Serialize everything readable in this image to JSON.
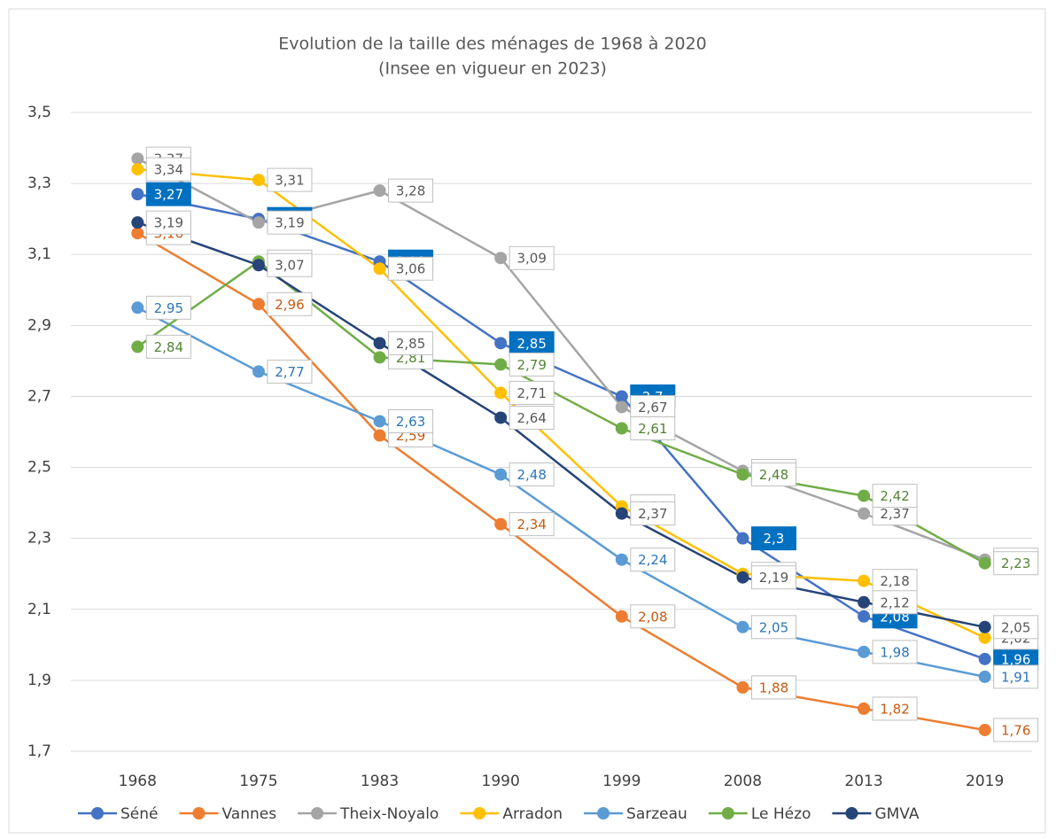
{
  "chart_data": {
    "type": "line",
    "title": "Evolution de la taille des ménages de 1968 à 2020",
    "subtitle": "(Insee en vigueur en 2023)",
    "categories": [
      "1968",
      "1975",
      "1983",
      "1990",
      "1999",
      "2008",
      "2013",
      "2019"
    ],
    "ylim": [
      1.7,
      3.5
    ],
    "yticks": [
      {
        "value": 1.7,
        "label": "1,7"
      },
      {
        "value": 1.9,
        "label": "1,9"
      },
      {
        "value": 2.1,
        "label": "2,1"
      },
      {
        "value": 2.3,
        "label": "2,3"
      },
      {
        "value": 2.5,
        "label": "2,5"
      },
      {
        "value": 2.7,
        "label": "2,7"
      },
      {
        "value": 2.9,
        "label": "2,9"
      },
      {
        "value": 3.1,
        "label": "3,1"
      },
      {
        "value": 3.3,
        "label": "3,3"
      },
      {
        "value": 3.5,
        "label": "3,5"
      }
    ],
    "grid": true,
    "legend": "bottom",
    "series": [
      {
        "name": "Séné",
        "color": "#4472c4",
        "values": [
          3.27,
          3.2,
          3.08,
          2.85,
          2.7,
          2.3,
          2.08,
          1.96
        ],
        "value_labels": [
          "3,27",
          "3,2",
          "3,08",
          "2,85",
          "2,7",
          "2,3",
          "2,08",
          "1,96"
        ]
      },
      {
        "name": "Vannes",
        "color": "#ed7d31",
        "values": [
          3.16,
          2.96,
          2.59,
          2.34,
          2.08,
          1.88,
          1.82,
          1.76
        ],
        "value_labels": [
          "3,16",
          "2,96",
          "2,59",
          "2,34",
          "2,08",
          "1,88",
          "1,82",
          "1,76"
        ]
      },
      {
        "name": "Theix-Noyalo",
        "color": "#a5a5a5",
        "values": [
          3.37,
          3.19,
          3.28,
          3.09,
          2.67,
          2.49,
          2.37,
          2.24
        ],
        "value_labels": [
          "3,37",
          "3,19",
          "3,28",
          "3,09",
          "2,67",
          "2,49",
          "2,37",
          "2,24"
        ]
      },
      {
        "name": "Arradon",
        "color": "#ffc000",
        "values": [
          3.34,
          3.31,
          3.06,
          2.71,
          2.39,
          2.2,
          2.18,
          2.02
        ],
        "value_labels": [
          "3,34",
          "3,31",
          "3,06",
          "2,71",
          "2,39",
          "2,2",
          "2,18",
          "2,02"
        ]
      },
      {
        "name": "Sarzeau",
        "color": "#5b9bd5",
        "values": [
          2.95,
          2.77,
          2.63,
          2.48,
          2.24,
          2.05,
          1.98,
          1.91
        ],
        "value_labels": [
          "2,95",
          "2,77",
          "2,63",
          "2,48",
          "2,24",
          "2,05",
          "1,98",
          "1,91"
        ]
      },
      {
        "name": "Le Hézo",
        "color": "#70ad47",
        "values": [
          2.84,
          3.08,
          2.81,
          2.79,
          2.61,
          2.48,
          2.42,
          2.23
        ],
        "value_labels": [
          "2,84",
          "3,08",
          "2,81",
          "2,79",
          "2,61",
          "2,48",
          "2,42",
          "2,23"
        ]
      },
      {
        "name": "GMVA",
        "color": "#264478",
        "values": [
          3.19,
          3.07,
          2.85,
          2.64,
          2.37,
          2.19,
          2.12,
          2.05
        ],
        "value_labels": [
          "3,19",
          "3,07",
          "2,85",
          "2,64",
          "2,37",
          "2,19",
          "2,12",
          "2,05"
        ]
      }
    ]
  }
}
